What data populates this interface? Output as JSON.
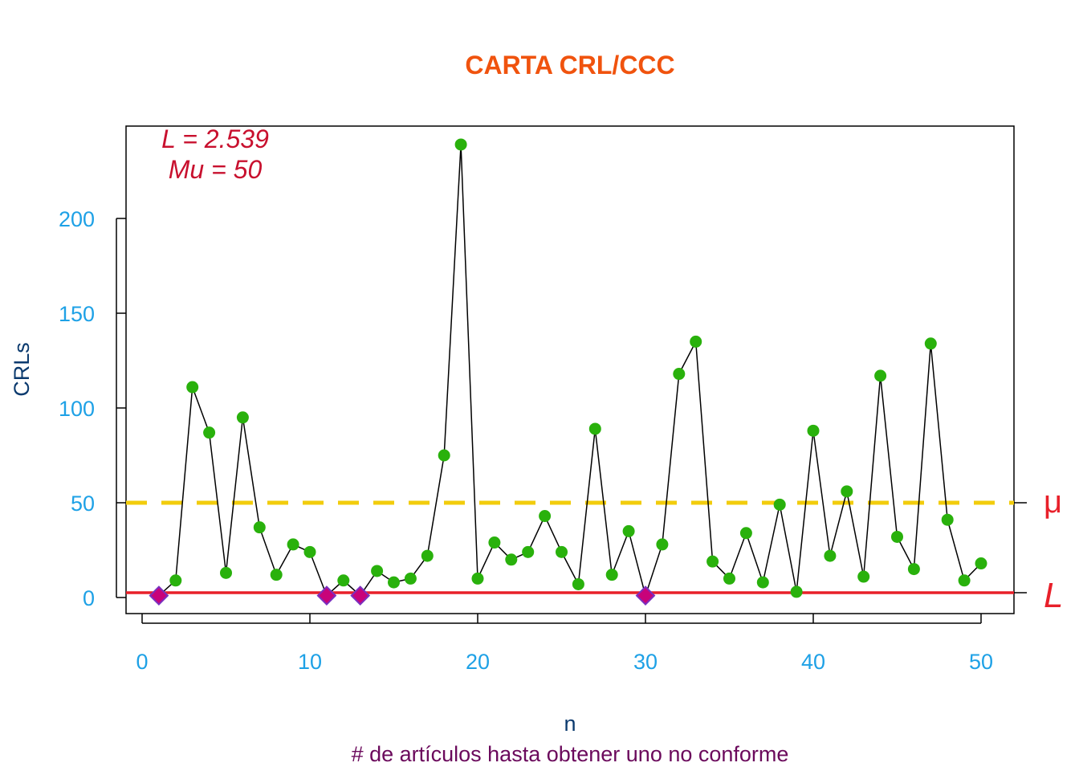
{
  "chart_data": {
    "type": "line",
    "title": "CARTA CRL/CCC",
    "xlabel": "n",
    "xsublabel": "# de artículos hasta obtener uno no conforme",
    "ylabel": "CRLs",
    "xlim": [
      -1,
      52
    ],
    "ylim": [
      -8,
      248
    ],
    "x_ticks": [
      0,
      10,
      20,
      30,
      40,
      50
    ],
    "y_ticks": [
      0,
      50,
      100,
      150,
      200
    ],
    "grid": false,
    "x": [
      1,
      2,
      3,
      4,
      5,
      6,
      7,
      8,
      9,
      10,
      11,
      12,
      13,
      14,
      15,
      16,
      17,
      18,
      19,
      20,
      21,
      22,
      23,
      24,
      25,
      26,
      27,
      28,
      29,
      30,
      31,
      32,
      33,
      34,
      35,
      36,
      37,
      38,
      39,
      40,
      41,
      42,
      43,
      44,
      45,
      46,
      47,
      48,
      49,
      50
    ],
    "values": [
      1,
      9,
      111,
      87,
      13,
      95,
      37,
      12,
      28,
      24,
      1,
      9,
      1,
      14,
      8,
      10,
      22,
      75,
      239,
      10,
      29,
      20,
      24,
      43,
      24,
      7,
      89,
      12,
      35,
      1,
      28,
      118,
      135,
      19,
      10,
      34,
      8,
      49,
      3,
      88,
      22,
      56,
      11,
      117,
      32,
      15,
      134,
      41,
      9,
      18
    ],
    "limit_line": {
      "value": 2.539,
      "label": "L",
      "color": "#e8202a"
    },
    "mean_line": {
      "value": 50,
      "label": "μ",
      "color": "#f2cc0c",
      "style": "dashed"
    },
    "annotations": [
      "L = 2.539",
      "Mu = 50"
    ],
    "colors": {
      "point": "#29b10c",
      "flagged_point": "#c8037a",
      "flagged_outline": "#7b2fbf",
      "line": "#000000",
      "title": "#f0530e",
      "tick_labels": "#1ea1e6",
      "axis_title": "#0b3a6e",
      "sublabel": "#6b0a5c",
      "annotation": "#c8102e"
    }
  }
}
